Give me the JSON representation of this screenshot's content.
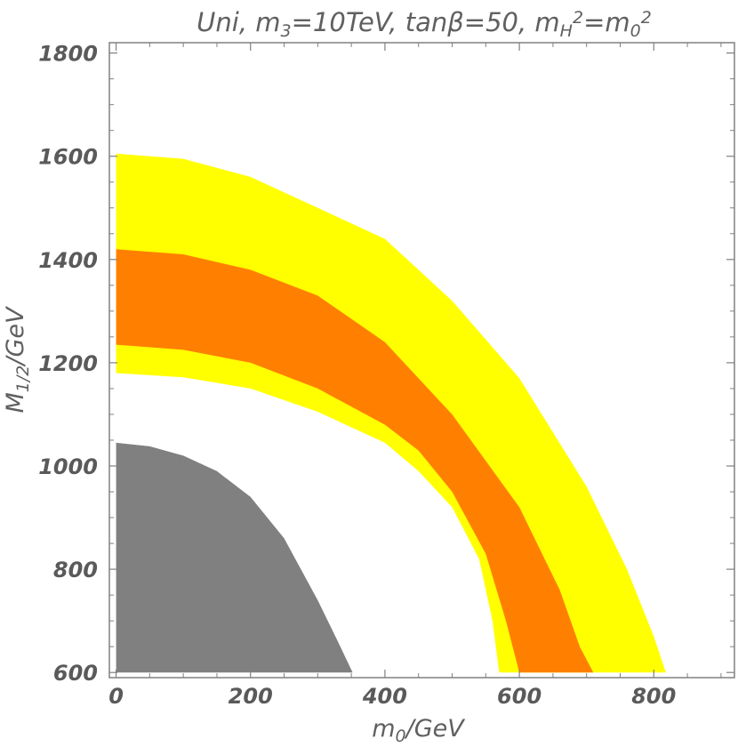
{
  "chart_data": {
    "type": "area",
    "title_parts": [
      {
        "t": "Uni, m",
        "s": "normal"
      },
      {
        "t": "3",
        "s": "sub"
      },
      {
        "t": "=10TeV, tanβ=50, m",
        "s": "normal"
      },
      {
        "t": "H",
        "s": "sub"
      },
      {
        "t": "2",
        "s": "sup"
      },
      {
        "t": "=m",
        "s": "normal"
      },
      {
        "t": "0",
        "s": "sub"
      },
      {
        "t": "2",
        "s": "sup"
      }
    ],
    "xlabel_parts": [
      {
        "t": "m",
        "s": "normal"
      },
      {
        "t": "0",
        "s": "sub"
      },
      {
        "t": "/GeV",
        "s": "normal"
      }
    ],
    "ylabel_parts": [
      {
        "t": "M",
        "s": "normal"
      },
      {
        "t": "1/2",
        "s": "sub"
      },
      {
        "t": "/GeV",
        "s": "normal"
      }
    ],
    "xlim": [
      -10,
      920
    ],
    "ylim": [
      590,
      1820
    ],
    "xticks": [
      0,
      200,
      400,
      600,
      800
    ],
    "yticks": [
      600,
      800,
      1000,
      1200,
      1400,
      1600,
      1800
    ],
    "grid": false,
    "regions": [
      {
        "name": "",
        "color": "#ffff00",
        "outer": [
          [
            0,
            1605
          ],
          [
            100,
            1595
          ],
          [
            200,
            1560
          ],
          [
            300,
            1500
          ],
          [
            400,
            1440
          ],
          [
            500,
            1320
          ],
          [
            600,
            1170
          ],
          [
            700,
            960
          ],
          [
            760,
            800
          ],
          [
            800,
            670
          ],
          [
            818,
            600
          ]
        ],
        "inner": [
          [
            0,
            1180
          ],
          [
            100,
            1172
          ],
          [
            200,
            1150
          ],
          [
            300,
            1105
          ],
          [
            400,
            1045
          ],
          [
            450,
            990
          ],
          [
            500,
            920
          ],
          [
            540,
            820
          ],
          [
            560,
            700
          ],
          [
            570,
            600
          ]
        ]
      },
      {
        "name": "",
        "color": "#ff8000",
        "outer": [
          [
            0,
            1420
          ],
          [
            100,
            1410
          ],
          [
            200,
            1380
          ],
          [
            300,
            1330
          ],
          [
            400,
            1240
          ],
          [
            500,
            1100
          ],
          [
            600,
            920
          ],
          [
            660,
            760
          ],
          [
            690,
            650
          ],
          [
            710,
            600
          ]
        ],
        "inner": [
          [
            0,
            1235
          ],
          [
            100,
            1225
          ],
          [
            200,
            1200
          ],
          [
            300,
            1150
          ],
          [
            400,
            1080
          ],
          [
            450,
            1030
          ],
          [
            500,
            950
          ],
          [
            550,
            830
          ],
          [
            580,
            700
          ],
          [
            600,
            600
          ]
        ]
      },
      {
        "name": "",
        "color": "#808080",
        "outer": [
          [
            0,
            1045
          ],
          [
            50,
            1038
          ],
          [
            100,
            1020
          ],
          [
            150,
            990
          ],
          [
            200,
            940
          ],
          [
            250,
            860
          ],
          [
            300,
            740
          ],
          [
            330,
            660
          ],
          [
            352,
            600
          ]
        ],
        "inner": []
      }
    ]
  }
}
